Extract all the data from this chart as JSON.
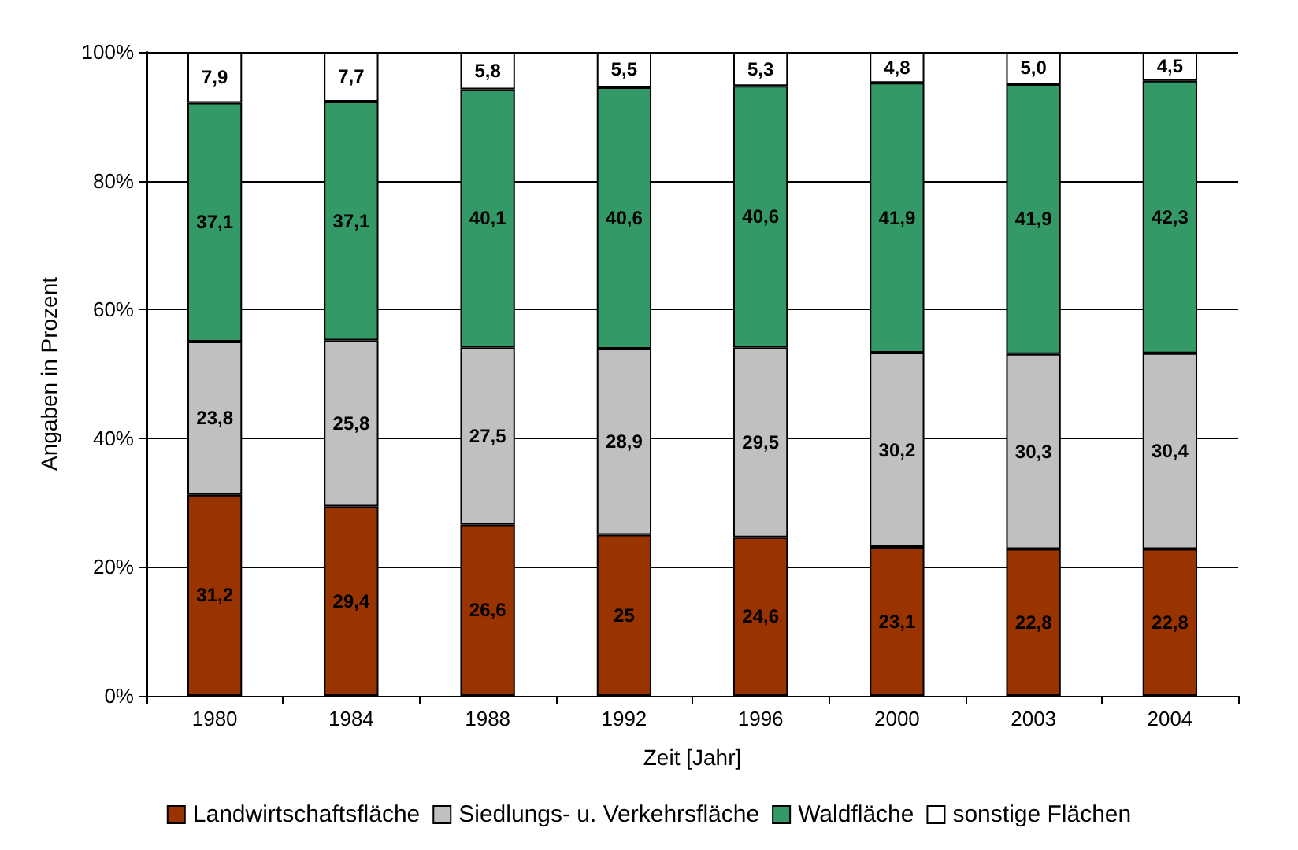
{
  "chart_data": {
    "type": "bar",
    "stacked": true,
    "xlabel": "Zeit [Jahr]",
    "ylabel": "Angaben in Prozent",
    "categories": [
      "1980",
      "1984",
      "1988",
      "1992",
      "1996",
      "2000",
      "2003",
      "2004"
    ],
    "ylim": [
      0,
      100
    ],
    "yticks": [
      {
        "value": 0,
        "label": "0%"
      },
      {
        "value": 20,
        "label": "20%"
      },
      {
        "value": 40,
        "label": "40%"
      },
      {
        "value": 60,
        "label": "60%"
      },
      {
        "value": 80,
        "label": "80%"
      },
      {
        "value": 100,
        "label": "100%"
      }
    ],
    "grid": "y",
    "legend": "bottom",
    "series": [
      {
        "name": "Landwirtschaftsfläche",
        "color": "#993300",
        "values": [
          31.2,
          29.4,
          26.6,
          25,
          24.6,
          23.1,
          22.8,
          22.8
        ],
        "value_labels": [
          "31,2",
          "29,4",
          "26,6",
          "25",
          "24,6",
          "23,1",
          "22,8",
          "22,8"
        ]
      },
      {
        "name": "Siedlungs- u. Verkehrsfläche",
        "color": "#c0c0c0",
        "values": [
          23.8,
          25.8,
          27.5,
          28.9,
          29.5,
          30.2,
          30.3,
          30.4
        ],
        "value_labels": [
          "23,8",
          "25,8",
          "27,5",
          "28,9",
          "29,5",
          "30,2",
          "30,3",
          "30,4"
        ]
      },
      {
        "name": "Waldfläche",
        "color": "#339966",
        "values": [
          37.1,
          37.1,
          40.1,
          40.6,
          40.6,
          41.9,
          41.9,
          42.3
        ],
        "value_labels": [
          "37,1",
          "37,1",
          "40,1",
          "40,6",
          "40,6",
          "41,9",
          "41,9",
          "42,3"
        ]
      },
      {
        "name": "sonstige Flächen",
        "color": "#ffffff",
        "values": [
          7.9,
          7.7,
          5.8,
          5.5,
          5.3,
          4.8,
          5.0,
          4.5
        ],
        "value_labels": [
          "7,9",
          "7,7",
          "5,8",
          "5,5",
          "5,3",
          "4,8",
          "5,0",
          "4,5"
        ]
      }
    ]
  }
}
